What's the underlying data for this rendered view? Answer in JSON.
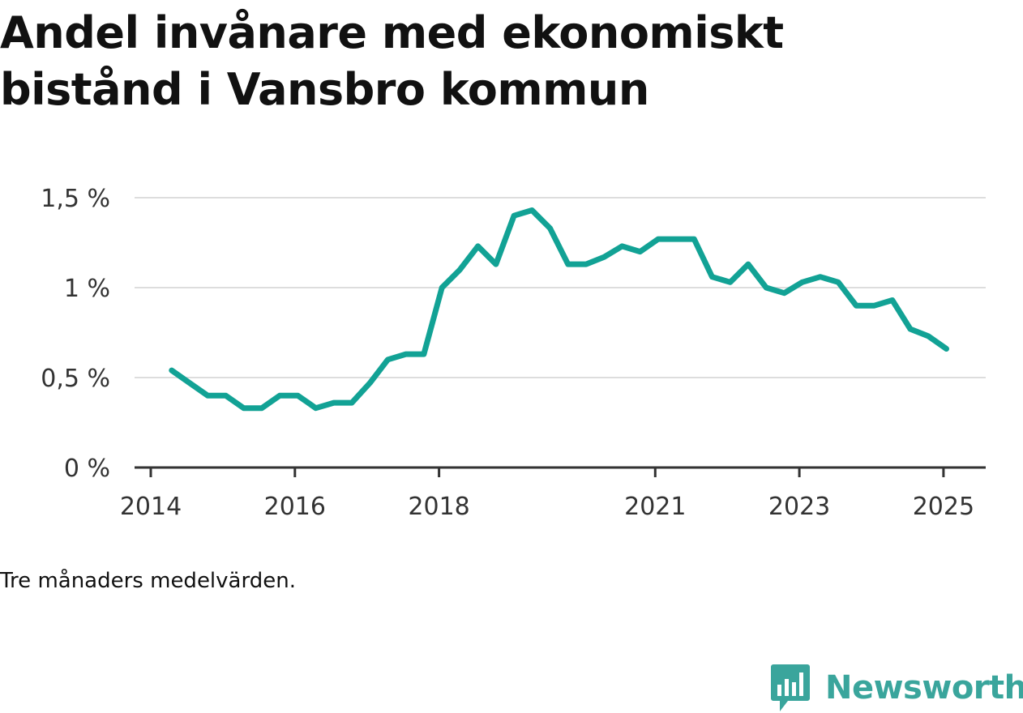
{
  "title": "Andel invånare med ekonomiskt bistånd i Vansbro kommun",
  "note": "Tre månaders medelvärden.",
  "brand": {
    "name": "Newsworthy",
    "icon": "newsworthy-logo-icon",
    "color": "#3aa59c"
  },
  "colors": {
    "line": "#12a295",
    "grid": "#dddddd",
    "axis": "#333333"
  },
  "chart_data": {
    "type": "line",
    "title": "Andel invånare med ekonomiskt bistånd i Vansbro kommun",
    "xlabel": "",
    "ylabel": "",
    "xlim": [
      2014.0,
      2025.6
    ],
    "ylim": [
      0,
      1.5
    ],
    "y_ticks": [
      {
        "value": 0,
        "label": "0 %"
      },
      {
        "value": 0.5,
        "label": "0,5 %"
      },
      {
        "value": 1,
        "label": "1 %"
      },
      {
        "value": 1.5,
        "label": "1,5 %"
      }
    ],
    "x_ticks": [
      {
        "value": 2014,
        "label": "2014"
      },
      {
        "value": 2016,
        "label": "2016"
      },
      {
        "value": 2018,
        "label": "2018"
      },
      {
        "value": 2021,
        "label": "2021"
      },
      {
        "value": 2023,
        "label": "2023"
      },
      {
        "value": 2025,
        "label": "2025"
      }
    ],
    "grid": true,
    "series": [
      {
        "color": "#12a295",
        "points": [
          [
            2014.29,
            0.54
          ],
          [
            2014.54,
            0.47
          ],
          [
            2014.79,
            0.4
          ],
          [
            2015.04,
            0.4
          ],
          [
            2015.29,
            0.33
          ],
          [
            2015.54,
            0.33
          ],
          [
            2015.79,
            0.4
          ],
          [
            2016.04,
            0.4
          ],
          [
            2016.29,
            0.33
          ],
          [
            2016.54,
            0.36
          ],
          [
            2016.79,
            0.36
          ],
          [
            2017.04,
            0.47
          ],
          [
            2017.29,
            0.6
          ],
          [
            2017.54,
            0.63
          ],
          [
            2017.79,
            0.63
          ],
          [
            2018.04,
            1.0
          ],
          [
            2018.29,
            1.1
          ],
          [
            2018.54,
            1.23
          ],
          [
            2018.79,
            1.13
          ],
          [
            2019.04,
            1.4
          ],
          [
            2019.29,
            1.43
          ],
          [
            2019.54,
            1.33
          ],
          [
            2019.79,
            1.13
          ],
          [
            2020.04,
            1.13
          ],
          [
            2020.29,
            1.17
          ],
          [
            2020.54,
            1.23
          ],
          [
            2020.79,
            1.2
          ],
          [
            2021.04,
            1.27
          ],
          [
            2021.29,
            1.27
          ],
          [
            2021.54,
            1.27
          ],
          [
            2021.79,
            1.06
          ],
          [
            2022.04,
            1.03
          ],
          [
            2022.29,
            1.13
          ],
          [
            2022.54,
            1.0
          ],
          [
            2022.79,
            0.97
          ],
          [
            2023.04,
            1.03
          ],
          [
            2023.29,
            1.06
          ],
          [
            2023.54,
            1.03
          ],
          [
            2023.79,
            0.9
          ],
          [
            2024.04,
            0.9
          ],
          [
            2024.29,
            0.93
          ],
          [
            2024.54,
            0.77
          ],
          [
            2024.79,
            0.73
          ],
          [
            2025.04,
            0.66
          ]
        ]
      }
    ]
  }
}
